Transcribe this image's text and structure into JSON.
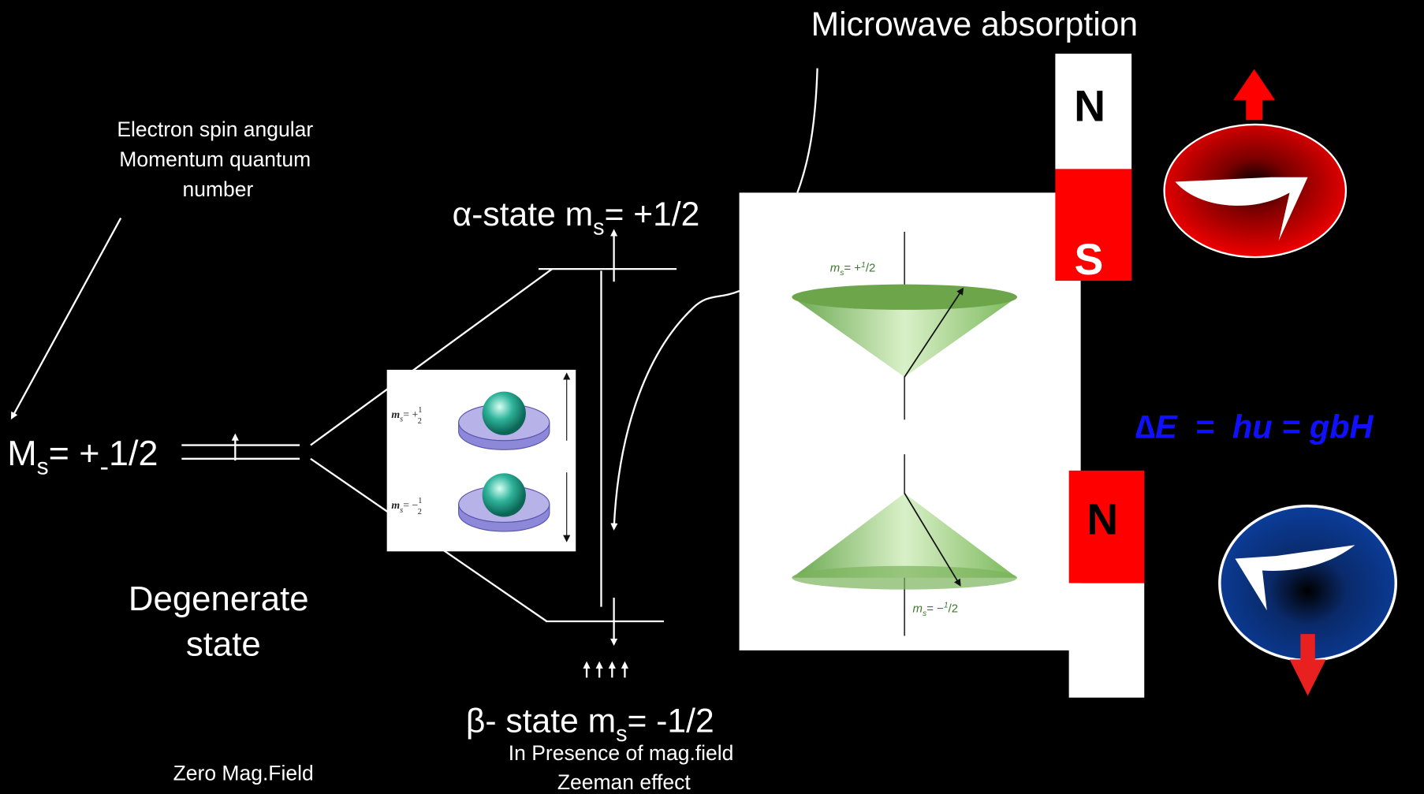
{
  "title": "Microwave absorption",
  "spin_note": [
    "Electron spin angular",
    "Momentum quantum",
    "number"
  ],
  "ms_label": {
    "main": "M",
    "sub": "s",
    "eq": "= +",
    "pm_sub": "-",
    "value": "1/2"
  },
  "degenerate": [
    "Degenerate",
    "state"
  ],
  "zero_field": "Zero Mag.Field",
  "alpha_state": {
    "prefix": "α-state m",
    "sub": "s",
    "suffix": "= +1/2"
  },
  "beta_state": {
    "prefix": "β- state m",
    "sub": "s",
    "suffix": "= -1/2"
  },
  "zeeman": [
    "In Presence of mag.field",
    "Zeeman effect"
  ],
  "inset": [
    {
      "m": "m",
      "sub": "s",
      "eq": "= +",
      "num": "1",
      "den": "2"
    },
    {
      "m": "m",
      "sub": "s",
      "eq": "= −",
      "num": "1",
      "den": "2"
    }
  ],
  "cones": [
    {
      "m": "m",
      "sub": "s",
      "eq": "= +",
      "num": "1",
      "den": "2"
    },
    {
      "m": "m",
      "sub": "s",
      "eq": "= −",
      "num": "1",
      "den": "2"
    }
  ],
  "magnets": {
    "top": [
      "N",
      "S"
    ],
    "bottom": [
      "N"
    ]
  },
  "equation": {
    "delta": "∆E",
    "rest": "  =  hu = gbH"
  }
}
